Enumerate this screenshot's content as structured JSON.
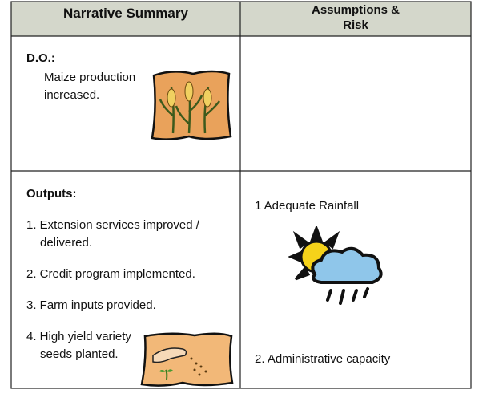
{
  "table": {
    "header": [
      "Narrative Summary",
      [
        "Assumptions &",
        "Risk"
      ]
    ],
    "rows": [
      {
        "narrative": {
          "heading": "D.O.:",
          "text": "Maize production increased."
        },
        "assumptions": []
      },
      {
        "narrative": {
          "heading": "Outputs:",
          "items": [
            "1. Extension services improved / delivered.",
            "2. Credit program implemented.",
            "3. Farm inputs provided.",
            "4. High yield variety seeds planted."
          ]
        },
        "assumptions": [
          "1 Adequate Rainfall",
          "2. Administrative capacity"
        ]
      }
    ]
  }
}
